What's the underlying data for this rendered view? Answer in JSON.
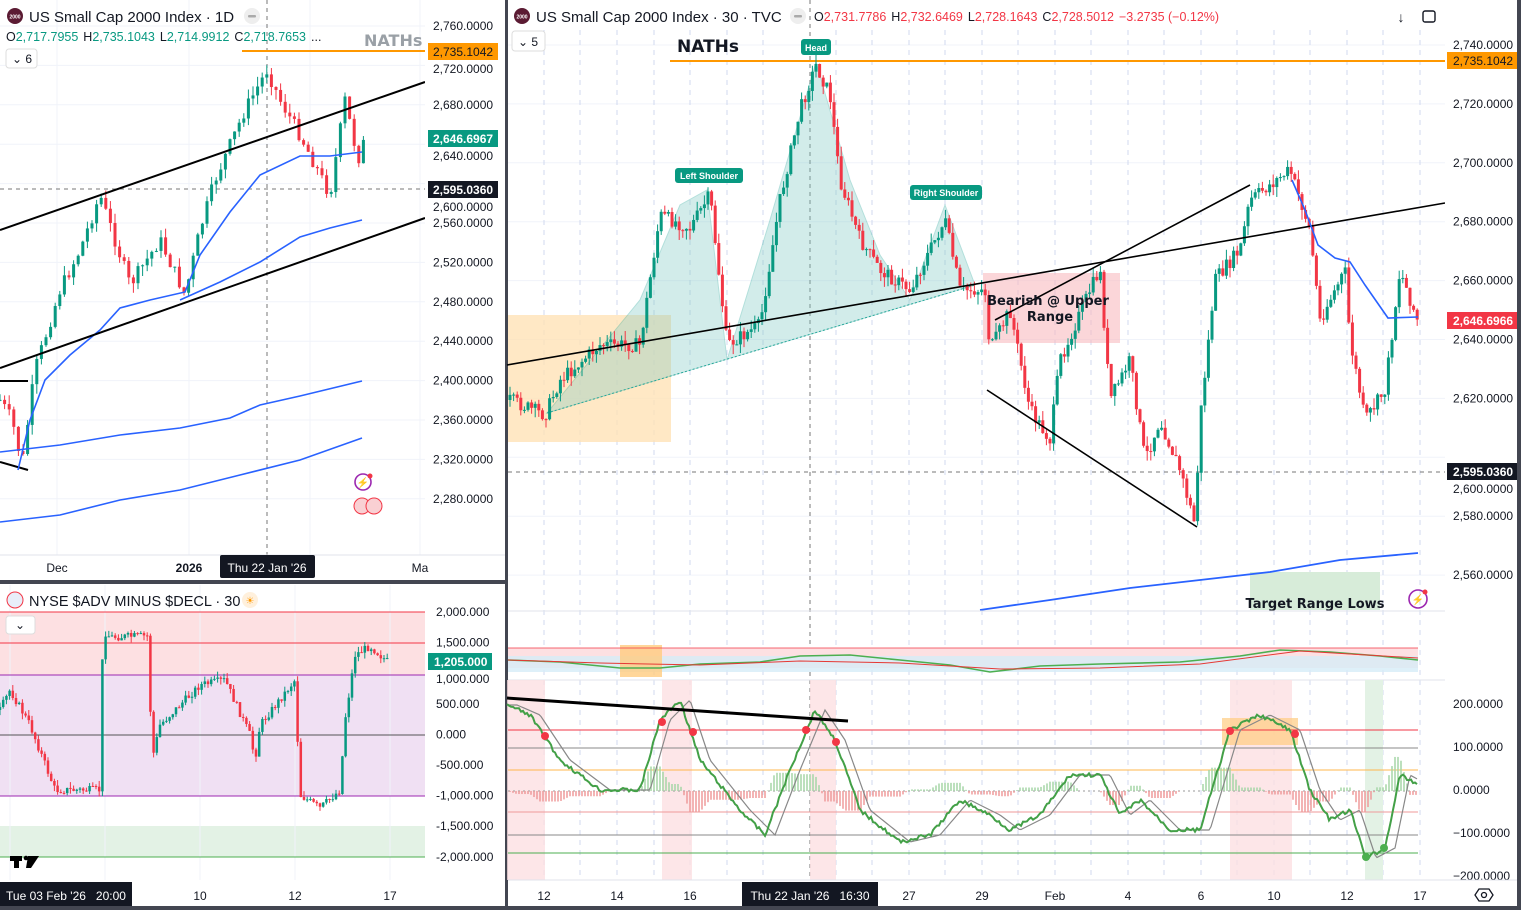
{
  "left_chart": {
    "title": "US Small Cap 2000 Index · 1D",
    "logo_text": "2000",
    "ohlc": {
      "o_label": "O",
      "o": "2,717.7955",
      "h_label": "H",
      "h": "2,735.1043",
      "l_label": "L",
      "l": "2,714.9912",
      "c_label": "C",
      "c": "2,718.7653",
      "more": "..."
    },
    "indicator_count": "6",
    "annotation": "NATHs",
    "price_ticks": [
      "2,760.0000",
      "2,720.0000",
      "2,680.0000",
      "2,640.0000",
      "2,600.0000",
      "2,560.0000",
      "2,520.0000",
      "2,480.0000",
      "2,440.0000",
      "2,400.0000",
      "2,360.0000",
      "2,320.0000",
      "2,280.0000"
    ],
    "price_labels": {
      "naths": "2,735.1042",
      "last": "2,646.6967",
      "crosshair": "2,595.0360"
    },
    "time_ticks": [
      "Dec",
      "2026",
      "Ma"
    ],
    "crosshair_time": "Thu 22 Jan '26"
  },
  "breadth_chart": {
    "title": "NYSE $ADV MINUS $DECL · 30",
    "value_ticks": [
      "2,000.000",
      "1,500.000",
      "1,000.000",
      "500.000",
      "0.000",
      "-500.000",
      "-1,000.000",
      "-1,500.000",
      "-2,000.000"
    ],
    "last_label": "1,205.000",
    "time_ticks": [
      "10",
      "12",
      "17"
    ],
    "crosshair_time": "Tue 03 Feb '26   20:00"
  },
  "right_chart": {
    "title": "US Small Cap 2000 Index · 30 · TVC",
    "logo_text": "2000",
    "ohlc": {
      "o_label": "O",
      "o": "2,731.7786",
      "h_label": "H",
      "h": "2,732.6469",
      "l_label": "L",
      "l": "2,728.1643",
      "c_label": "C",
      "c": "2,728.5012",
      "change": "−3.2735 (−0.12%)"
    },
    "indicator_count": "5",
    "annotations": {
      "naths": "NATHs",
      "head": "Head",
      "left_shoulder": "Left Shoulder",
      "right_shoulder": "Right Shoulder",
      "bearish_line1": "Bearish @ Upper",
      "bearish_line2": "Range",
      "target": "Target Range Lows"
    },
    "price_ticks": [
      "2,740.0000",
      "2,720.0000",
      "2,700.0000",
      "2,680.0000",
      "2,660.0000",
      "2,640.0000",
      "2,620.0000",
      "2,600.0000",
      "2,580.0000",
      "2,560.0000"
    ],
    "price_labels": {
      "naths": "2,735.1042",
      "last": "2,646.6966",
      "crosshair": "2,595.0360"
    },
    "osc_ticks": [
      "200.0000",
      "100.0000",
      "0.0000",
      "−100.0000",
      "−200.0000"
    ],
    "time_ticks": [
      "12",
      "14",
      "16",
      "27",
      "29",
      "Feb",
      "4",
      "6",
      "10",
      "12",
      "17"
    ],
    "crosshair_time": "Thu 22 Jan '26   16:30"
  },
  "colors": {
    "up": "#089981",
    "down": "#f23645",
    "orange": "#ff9800",
    "ma": "#2962ff",
    "text": "#131722"
  }
}
